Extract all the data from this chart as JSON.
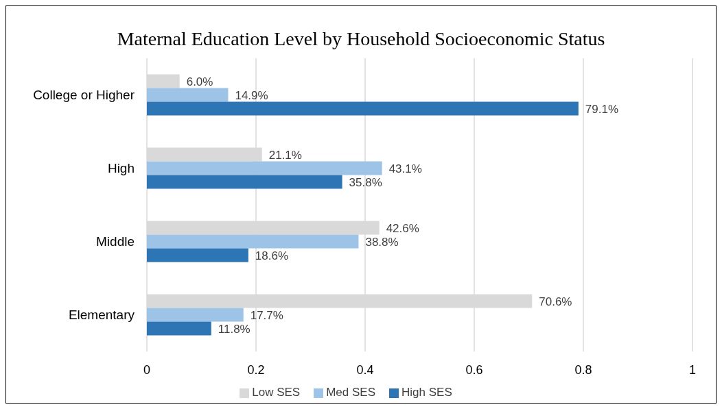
{
  "chart_data": {
    "type": "bar",
    "orientation": "horizontal",
    "title": "Maternal Education Level by Household Socioeconomic Status",
    "categories": [
      "College or Higher",
      "High",
      "Middle",
      "Elementary"
    ],
    "series": [
      {
        "name": "Low SES",
        "color": "#d9d9d9",
        "values": [
          0.06,
          0.211,
          0.426,
          0.706
        ],
        "value_labels": [
          "6.0%",
          "21.1%",
          "42.6%",
          "70.6%"
        ]
      },
      {
        "name": "Med SES",
        "color": "#9dc3e6",
        "values": [
          0.149,
          0.431,
          0.388,
          0.177
        ],
        "value_labels": [
          "14.9%",
          "43.1%",
          "38.8%",
          "17.7%"
        ]
      },
      {
        "name": "High SES",
        "color": "#2e75b6",
        "values": [
          0.791,
          0.358,
          0.186,
          0.118
        ],
        "value_labels": [
          "79.1%",
          "35.8%",
          "18.6%",
          "11.8%"
        ]
      }
    ],
    "xlim": [
      0,
      1
    ],
    "xticks": [
      0,
      0.2,
      0.4,
      0.6,
      0.8,
      1
    ],
    "grid": "x",
    "legend": "bottom"
  }
}
